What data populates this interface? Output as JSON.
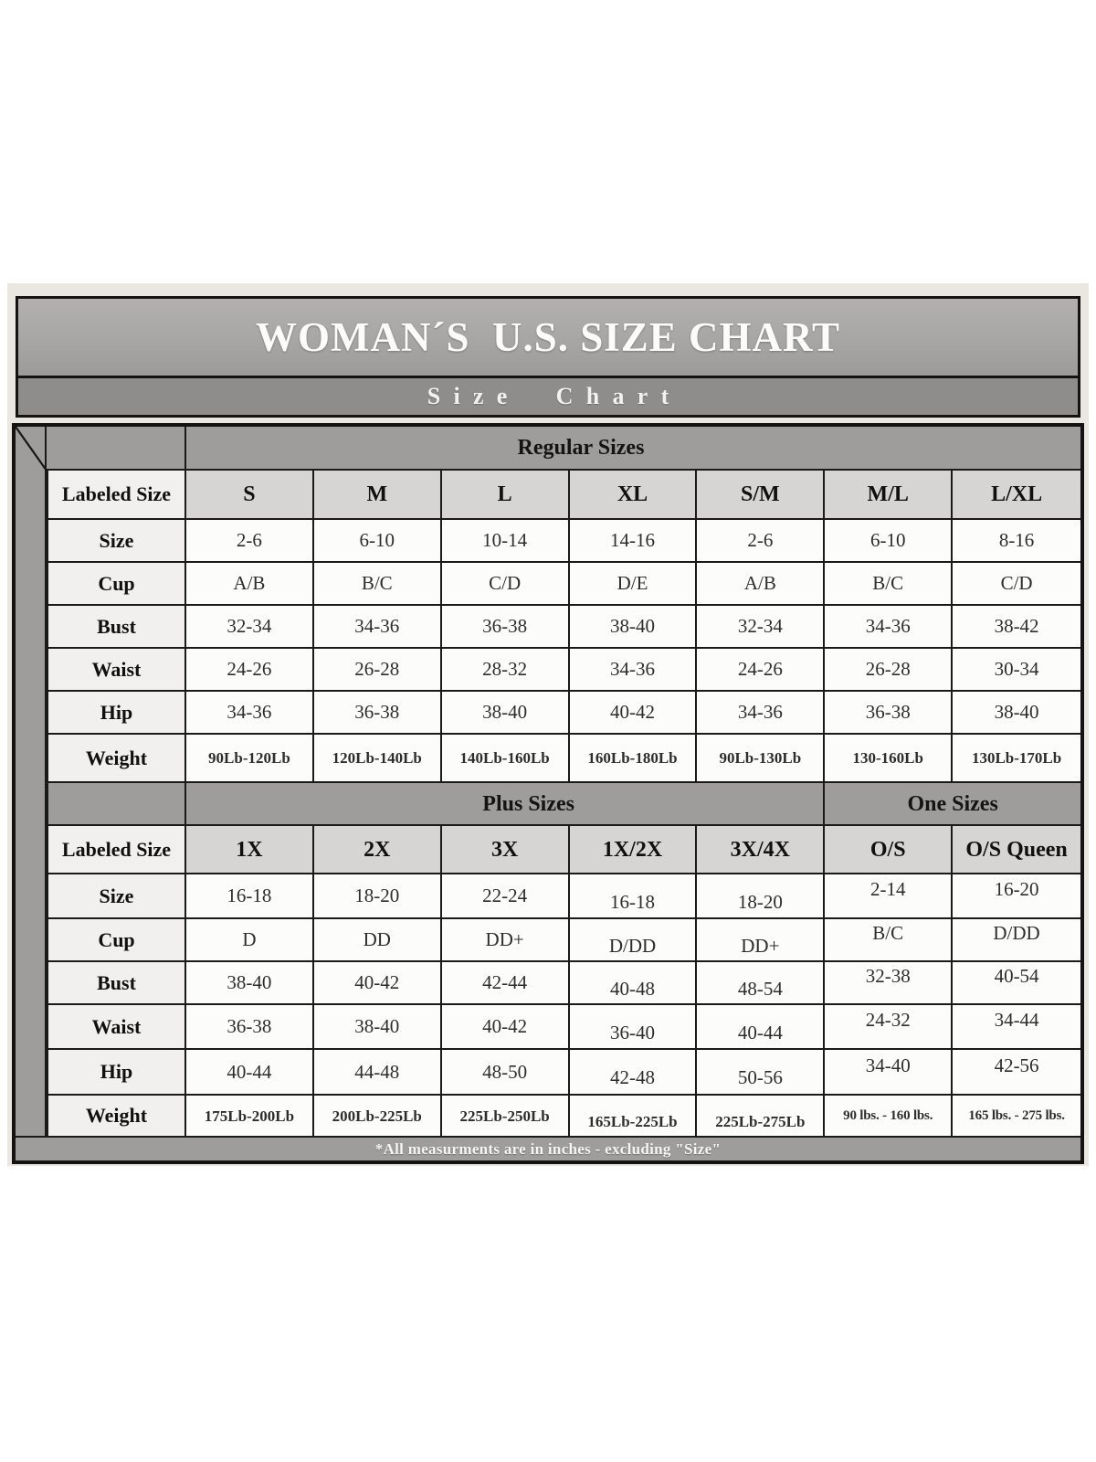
{
  "chart_data": {
    "type": "table",
    "title": "WOMAN´S  U.S. SIZE CHART",
    "subtitle": "Size Chart",
    "footnote": "*All measurments are in inches - excluding \"Size\"",
    "sections": [
      {
        "band": [
          {
            "label": "Regular Sizes",
            "span": 7
          }
        ],
        "header_row": {
          "label": "Labeled Size",
          "columns": [
            "S",
            "M",
            "L",
            "XL",
            "S/M",
            "M/L",
            "L/XL"
          ]
        },
        "rows": [
          {
            "label": "Size",
            "values": [
              "2-6",
              "6-10",
              "10-14",
              "14-16",
              "2-6",
              "6-10",
              "8-16"
            ]
          },
          {
            "label": "Cup",
            "values": [
              "A/B",
              "B/C",
              "C/D",
              "D/E",
              "A/B",
              "B/C",
              "C/D"
            ]
          },
          {
            "label": "Bust",
            "values": [
              "32-34",
              "34-36",
              "36-38",
              "38-40",
              "32-34",
              "34-36",
              "38-42"
            ]
          },
          {
            "label": "Waist",
            "values": [
              "24-26",
              "26-28",
              "28-32",
              "34-36",
              "24-26",
              "26-28",
              "30-34"
            ]
          },
          {
            "label": "Hip",
            "values": [
              "34-36",
              "36-38",
              "38-40",
              "40-42",
              "34-36",
              "36-38",
              "38-40"
            ]
          },
          {
            "label": "Weight",
            "values": [
              "90Lb-120Lb",
              "120Lb-140Lb",
              "140Lb-160Lb",
              "160Lb-180Lb",
              "90Lb-130Lb",
              "130-160Lb",
              "130Lb-170Lb"
            ]
          }
        ]
      },
      {
        "band": [
          {
            "label": "Plus Sizes",
            "span": 5
          },
          {
            "label": "One Sizes",
            "span": 2
          }
        ],
        "header_row": {
          "label": "Labeled Size",
          "columns": [
            "1X",
            "2X",
            "3X",
            "1X/2X",
            "3X/4X",
            "O/S",
            "O/S Queen"
          ]
        },
        "rows": [
          {
            "label": "Size",
            "values": [
              "16-18",
              "18-20",
              "22-24",
              "16-18",
              "18-20",
              "2-14",
              "16-20"
            ]
          },
          {
            "label": "Cup",
            "values": [
              "D",
              "DD",
              "DD+",
              "D/DD",
              "DD+",
              "B/C",
              "D/DD"
            ]
          },
          {
            "label": "Bust",
            "values": [
              "38-40",
              "40-42",
              "42-44",
              "40-48",
              "48-54",
              "32-38",
              "40-54"
            ]
          },
          {
            "label": "Waist",
            "values": [
              "36-38",
              "38-40",
              "40-42",
              "36-40",
              "40-44",
              "24-32",
              "34-44"
            ]
          },
          {
            "label": "Hip",
            "values": [
              "40-44",
              "44-48",
              "48-50",
              "42-48",
              "50-56",
              "34-40",
              "42-56"
            ]
          },
          {
            "label": "Weight",
            "values": [
              "175Lb-200Lb",
              "200Lb-225Lb",
              "225Lb-250Lb",
              "165Lb-225Lb",
              "225Lb-275Lb",
              "90 lbs. - 160 lbs.",
              "165 lbs. - 275 lbs."
            ]
          }
        ]
      }
    ],
    "layout": {
      "grid": "on",
      "band_header_position": "top-of-each-section"
    }
  },
  "colors": {
    "border_black": "#1a1a1a",
    "band_gray": "#9e9d9b",
    "header_cell_gray": "#d6d5d3",
    "label_column_bg": "#f1f0ee",
    "data_cell_bg": "#fcfcfa",
    "frame_beige": "#eae7e1",
    "title_bar_gray": "#a7a6a4",
    "subtitle_bar_gray": "#8e8d8b",
    "title_text": "#fbfbfa"
  }
}
